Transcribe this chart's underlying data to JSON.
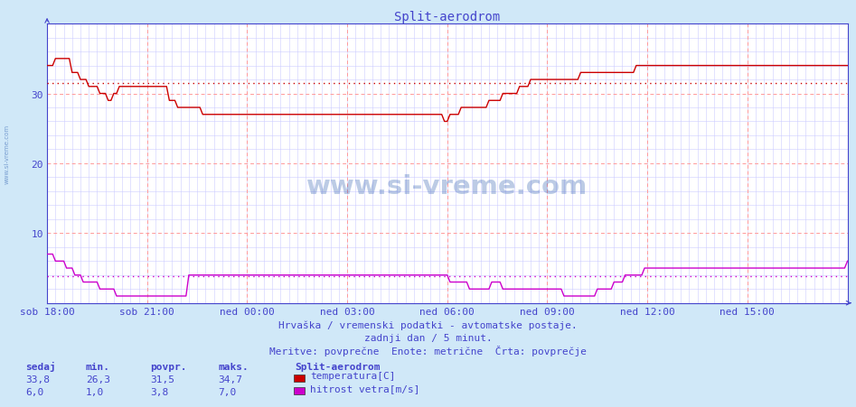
{
  "title": "Split-aerodrom",
  "bg_color": "#d0e8f8",
  "plot_bg_color": "#ffffff",
  "grid_color_major": "#ff9999",
  "grid_color_minor": "#ccccff",
  "x_ticks_labels": [
    "sob 18:00",
    "sob 21:00",
    "ned 00:00",
    "ned 03:00",
    "ned 06:00",
    "ned 09:00",
    "ned 12:00",
    "ned 15:00"
  ],
  "x_ticks_pos": [
    0,
    36,
    72,
    108,
    144,
    180,
    216,
    252
  ],
  "total_points": 289,
  "y_min": 0,
  "y_max": 40,
  "y_ticks": [
    10,
    20,
    30
  ],
  "temp_avg": 31.5,
  "wind_avg": 3.8,
  "temp_color": "#cc0000",
  "wind_color": "#cc00cc",
  "axis_color": "#4444cc",
  "tick_color": "#4444cc",
  "title_color": "#4444cc",
  "footer_color": "#4444cc",
  "watermark_color": "#2255aa",
  "footer_line1": "Hrvaška / vremenski podatki - avtomatske postaje.",
  "footer_line2": "zadnji dan / 5 minut.",
  "footer_line3": "Meritve: povprečne  Enote: metrične  Črta: povprečje",
  "legend_title": "Split-aerodrom",
  "legend_items": [
    {
      "label": "temperatura[C]",
      "color": "#cc0000"
    },
    {
      "label": "hitrost vetra[m/s]",
      "color": "#cc00cc"
    }
  ],
  "stats": [
    {
      "name": "sedaj",
      "temp": "33,8",
      "wind": "6,0"
    },
    {
      "name": "min.",
      "temp": "26,3",
      "wind": "1,0"
    },
    {
      "name": "povpr.",
      "temp": "31,5",
      "wind": "3,8"
    },
    {
      "name": "maks.",
      "temp": "34,7",
      "wind": "7,0"
    }
  ],
  "temp_data": [
    34,
    34,
    34,
    35,
    35,
    35,
    35,
    35,
    35,
    33,
    33,
    33,
    32,
    32,
    32,
    31,
    31,
    31,
    31,
    30,
    30,
    30,
    29,
    29,
    30,
    30,
    31,
    31,
    31,
    31,
    31,
    31,
    31,
    31,
    31,
    31,
    31,
    31,
    31,
    31,
    31,
    31,
    31,
    31,
    29,
    29,
    29,
    28,
    28,
    28,
    28,
    28,
    28,
    28,
    28,
    28,
    27,
    27,
    27,
    27,
    27,
    27,
    27,
    27,
    27,
    27,
    27,
    27,
    27,
    27,
    27,
    27,
    27,
    27,
    27,
    27,
    27,
    27,
    27,
    27,
    27,
    27,
    27,
    27,
    27,
    27,
    27,
    27,
    27,
    27,
    27,
    27,
    27,
    27,
    27,
    27,
    27,
    27,
    27,
    27,
    27,
    27,
    27,
    27,
    27,
    27,
    27,
    27,
    27,
    27,
    27,
    27,
    27,
    27,
    27,
    27,
    27,
    27,
    27,
    27,
    27,
    27,
    27,
    27,
    27,
    27,
    27,
    27,
    27,
    27,
    27,
    27,
    27,
    27,
    27,
    27,
    27,
    27,
    27,
    27,
    27,
    27,
    27,
    26,
    26,
    27,
    27,
    27,
    27,
    28,
    28,
    28,
    28,
    28,
    28,
    28,
    28,
    28,
    28,
    29,
    29,
    29,
    29,
    29,
    30,
    30,
    30,
    30,
    30,
    30,
    31,
    31,
    31,
    31,
    32,
    32,
    32,
    32,
    32,
    32,
    32,
    32,
    32,
    32,
    32,
    32,
    32,
    32,
    32,
    32,
    32,
    32,
    33,
    33,
    33,
    33,
    33,
    33,
    33,
    33,
    33,
    33,
    33,
    33,
    33,
    33,
    33,
    33,
    33,
    33,
    33,
    33,
    34,
    34,
    34,
    34,
    34,
    34,
    34,
    34,
    34,
    34,
    34,
    34,
    34,
    34,
    34,
    34,
    34,
    34,
    34,
    34,
    34,
    34,
    34,
    34,
    34,
    34,
    34,
    34,
    34,
    34,
    34,
    34,
    34,
    34,
    34,
    34,
    34,
    34,
    34,
    34,
    34,
    34,
    34,
    34,
    34,
    34,
    34,
    34,
    34,
    34,
    34,
    34,
    34,
    34,
    34,
    34,
    34,
    34,
    34,
    34,
    34,
    34,
    34,
    34,
    34,
    34,
    34,
    34,
    34,
    34,
    34,
    34,
    34,
    34,
    34,
    34,
    34
  ],
  "wind_data": [
    7,
    7,
    7,
    6,
    6,
    6,
    6,
    5,
    5,
    5,
    4,
    4,
    4,
    3,
    3,
    3,
    3,
    3,
    3,
    2,
    2,
    2,
    2,
    2,
    2,
    1,
    1,
    1,
    1,
    1,
    1,
    1,
    1,
    1,
    1,
    1,
    1,
    1,
    1,
    1,
    1,
    1,
    1,
    1,
    1,
    1,
    1,
    1,
    1,
    1,
    1,
    4,
    4,
    4,
    4,
    4,
    4,
    4,
    4,
    4,
    4,
    4,
    4,
    4,
    4,
    4,
    4,
    4,
    4,
    4,
    4,
    4,
    4,
    4,
    4,
    4,
    4,
    4,
    4,
    4,
    4,
    4,
    4,
    4,
    4,
    4,
    4,
    4,
    4,
    4,
    4,
    4,
    4,
    4,
    4,
    4,
    4,
    4,
    4,
    4,
    4,
    4,
    4,
    4,
    4,
    4,
    4,
    4,
    4,
    4,
    4,
    4,
    4,
    4,
    4,
    4,
    4,
    4,
    4,
    4,
    4,
    4,
    4,
    4,
    4,
    4,
    4,
    4,
    4,
    4,
    4,
    4,
    4,
    4,
    4,
    4,
    4,
    4,
    4,
    4,
    4,
    4,
    4,
    4,
    4,
    3,
    3,
    3,
    3,
    3,
    3,
    3,
    2,
    2,
    2,
    2,
    2,
    2,
    2,
    2,
    3,
    3,
    3,
    3,
    2,
    2,
    2,
    2,
    2,
    2,
    2,
    2,
    2,
    2,
    2,
    2,
    2,
    2,
    2,
    2,
    2,
    2,
    2,
    2,
    2,
    2,
    1,
    1,
    1,
    1,
    1,
    1,
    1,
    1,
    1,
    1,
    1,
    1,
    2,
    2,
    2,
    2,
    2,
    2,
    3,
    3,
    3,
    3,
    4,
    4,
    4,
    4,
    4,
    4,
    4,
    5,
    5,
    5,
    5,
    5,
    5,
    5,
    5,
    5,
    5,
    5,
    5,
    5,
    5,
    5,
    5,
    5,
    5,
    5,
    5,
    5,
    5,
    5,
    5,
    5,
    5,
    5,
    5,
    5,
    5,
    5,
    5,
    5,
    5,
    5,
    5,
    5,
    5,
    5,
    5,
    5,
    5,
    5,
    5,
    5,
    5,
    5,
    5,
    5,
    5,
    5,
    5,
    5,
    5,
    5,
    5,
    5,
    5,
    5,
    5,
    5,
    5,
    5,
    5,
    5,
    5,
    5,
    5,
    5,
    5,
    5,
    5,
    5,
    6
  ]
}
